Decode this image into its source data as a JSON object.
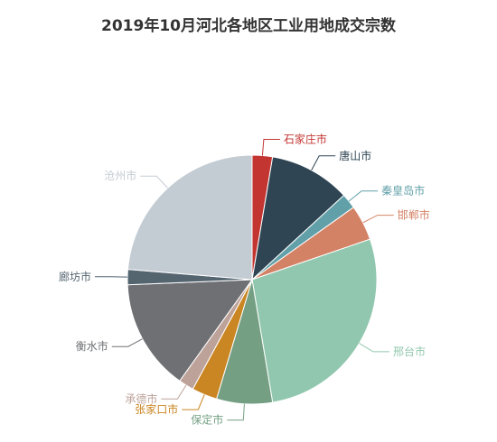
{
  "chart_data": {
    "type": "pie",
    "title": "2019年10月河北各地区工业用地成交宗数",
    "slices": [
      {
        "label": "石家庄市",
        "value": 2,
        "color": "#c23531"
      },
      {
        "label": "唐山市",
        "value": 8,
        "color": "#2f4554"
      },
      {
        "label": "秦皇岛市",
        "value": 1.5,
        "color": "#61a0a8"
      },
      {
        "label": "邯郸市",
        "value": 3.5,
        "color": "#d48265"
      },
      {
        "label": "邢台市",
        "value": 21,
        "color": "#91c7ae"
      },
      {
        "label": "保定市",
        "value": 5.5,
        "color": "#749f83"
      },
      {
        "label": "张家口市",
        "value": 2.5,
        "color": "#ca8622"
      },
      {
        "label": "承德市",
        "value": 1.5,
        "color": "#bda29a"
      },
      {
        "label": "衡水市",
        "value": 11,
        "color": "#6e7074"
      },
      {
        "label": "廊坊市",
        "value": 1.5,
        "color": "#546570"
      },
      {
        "label": "沧州市",
        "value": 18,
        "color": "#c4ccd3"
      }
    ]
  }
}
